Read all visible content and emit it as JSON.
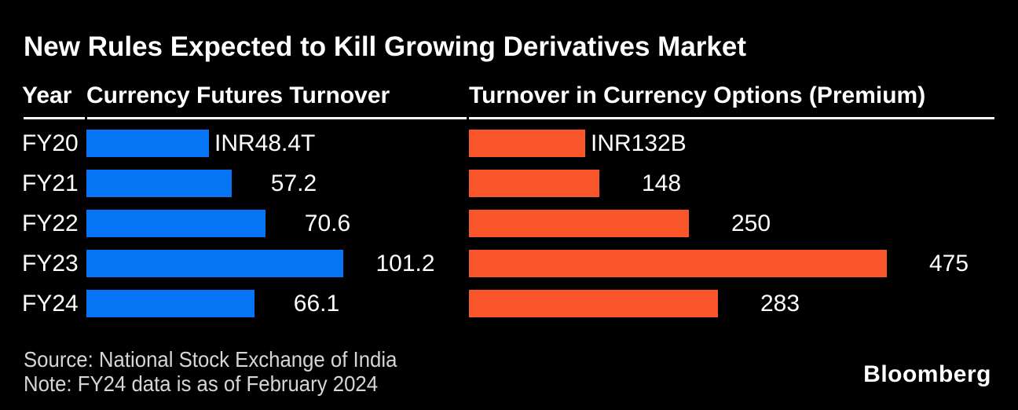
{
  "title": "New Rules Expected to Kill Growing Derivatives Market",
  "table_headers": {
    "year": "Year",
    "futures": "Currency Futures Turnover",
    "options": "Turnover in Currency Options (Premium)"
  },
  "footer": {
    "source": "Source: National Stock Exchange of India",
    "note": "Note: FY24 data is as of February 2024",
    "brand": "Bloomberg"
  },
  "colors": {
    "background": "#000000",
    "futures_bar": "#0574F5",
    "options_bar": "#F9562B",
    "text": "#FFFFFF",
    "footer_text": "#D6D6D6"
  },
  "chart_data": {
    "type": "bar",
    "orientation": "horizontal",
    "title": "New Rules Expected to Kill Growing Derivatives Market",
    "categories": [
      "FY20",
      "FY21",
      "FY22",
      "FY23",
      "FY24"
    ],
    "series": [
      {
        "name": "Currency Futures Turnover",
        "unit": "INR trillions",
        "values": [
          48.4,
          57.2,
          70.6,
          101.2,
          66.1
        ],
        "labels": [
          "INR48.4T",
          "57.2",
          "70.6",
          "101.2",
          "66.1"
        ],
        "color": "#0574F5",
        "xlim": [
          0,
          101.2
        ]
      },
      {
        "name": "Turnover in Currency Options (Premium)",
        "unit": "INR billions",
        "values": [
          132,
          148,
          250,
          475,
          283
        ],
        "labels": [
          "INR132B",
          "148",
          "250",
          "475",
          "283"
        ],
        "color": "#F9562B",
        "xlim": [
          0,
          475
        ]
      }
    ],
    "legend": "none",
    "grid": false
  }
}
